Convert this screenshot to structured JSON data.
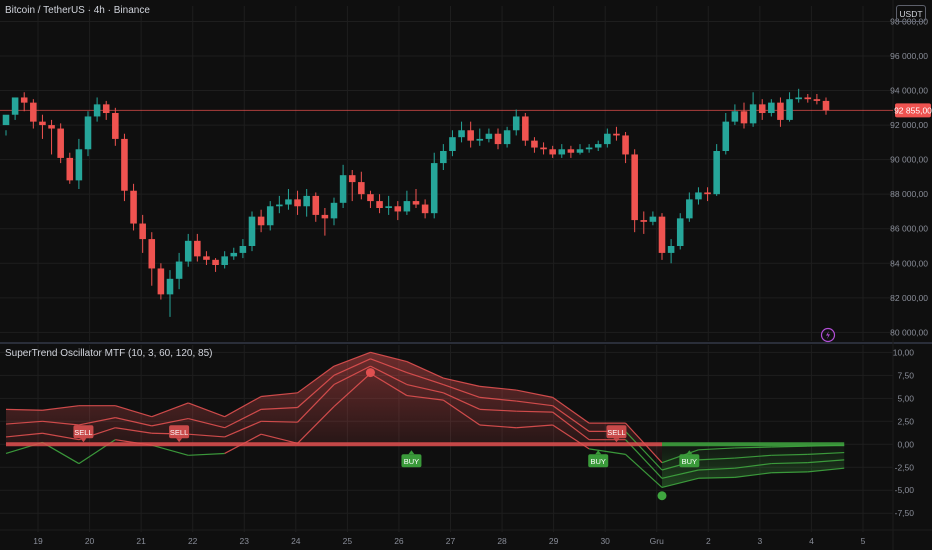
{
  "header": {
    "main_title": "Bitcoin / TetherUS · 4h · Binance",
    "currency_button": "USDT",
    "oscillator_title": "SuperTrend Oscillator MTF (10, 3, 60, 120, 85)"
  },
  "colors": {
    "background": "#0f0f0f",
    "up": "#26a69a",
    "down": "#ef5350",
    "grid": "#1e1e1e",
    "axis_text": "#8a8e99",
    "bull_line": "#3fa63f",
    "bear_line": "#e05050",
    "price_label_bg": "#ef5350",
    "lightning": "#b24fd6"
  },
  "chart_data": [
    {
      "type": "candlestick",
      "yticks": [
        "80 000,00",
        "82 000,00",
        "84 000,00",
        "86 000,00",
        "88 000,00",
        "90 000,00",
        "92 000,00",
        "94 000,00",
        "96 000,00",
        "98 000,00"
      ],
      "ytick_values": [
        80000,
        82000,
        84000,
        86000,
        88000,
        90000,
        92000,
        94000,
        96000,
        98000
      ],
      "xticks": [
        "19",
        "20",
        "21",
        "22",
        "23",
        "24",
        "25",
        "26",
        "27",
        "28",
        "29",
        "30",
        "Gru",
        "2",
        "3",
        "4",
        "5"
      ],
      "ylim": [
        79500,
        98200
      ],
      "current_price": 92855,
      "current_price_label": "92 855,00",
      "series": [
        {
          "name": "BTCUSDT 4h",
          "ohlc": [
            [
              92000,
              92600,
              91700,
              91400
            ],
            [
              92600,
              93600,
              92800,
              92300
            ],
            [
              93600,
              93300,
              93900,
              92800
            ],
            [
              93300,
              92200,
              93500,
              91800
            ],
            [
              92200,
              92000,
              92600,
              91200
            ],
            [
              92000,
              91800,
              92300,
              90300
            ],
            [
              91800,
              90100,
              92100,
              89800
            ],
            [
              90100,
              88800,
              90400,
              88600
            ],
            [
              88800,
              90600,
              91200,
              88300
            ],
            [
              90600,
              92500,
              92800,
              90200
            ],
            [
              92500,
              93200,
              93600,
              92200
            ],
            [
              93200,
              92700,
              93400,
              92300
            ],
            [
              92700,
              91200,
              93000,
              90800
            ],
            [
              91200,
              88200,
              91500,
              87600
            ],
            [
              88200,
              86300,
              88600,
              85900
            ],
            [
              86300,
              85400,
              86800,
              84600
            ],
            [
              85400,
              83700,
              85800,
              82700
            ],
            [
              83700,
              82200,
              84000,
              81900
            ],
            [
              82200,
              83100,
              83600,
              80900
            ],
            [
              83100,
              84100,
              84600,
              82500
            ],
            [
              84100,
              85300,
              85700,
              83800
            ],
            [
              85300,
              84400,
              85700,
              84100
            ],
            [
              84400,
              84200,
              84700,
              83900
            ],
            [
              84200,
              83900,
              84300,
              83500
            ],
            [
              83900,
              84400,
              84700,
              83700
            ],
            [
              84400,
              84600,
              84900,
              84200
            ],
            [
              84600,
              85000,
              85400,
              84300
            ],
            [
              85000,
              86700,
              87000,
              84700
            ],
            [
              86700,
              86200,
              87100,
              85800
            ],
            [
              86200,
              87300,
              87600,
              85900
            ],
            [
              87300,
              87400,
              87900,
              86900
            ],
            [
              87400,
              87700,
              88300,
              87100
            ],
            [
              87700,
              87300,
              88200,
              86800
            ],
            [
              87300,
              87900,
              88300,
              86700
            ],
            [
              87900,
              86800,
              88100,
              86400
            ],
            [
              86800,
              86600,
              87200,
              85600
            ],
            [
              86600,
              87500,
              87800,
              86200
            ],
            [
              87500,
              89100,
              89700,
              87200
            ],
            [
              89100,
              88700,
              89400,
              87600
            ],
            [
              88700,
              88000,
              89300,
              87700
            ],
            [
              88000,
              87600,
              88200,
              87200
            ],
            [
              87600,
              87200,
              88000,
              86900
            ],
            [
              87200,
              87300,
              87900,
              86800
            ],
            [
              87300,
              87000,
              87600,
              86500
            ],
            [
              87000,
              87600,
              88200,
              86800
            ],
            [
              87600,
              87400,
              88300,
              87200
            ],
            [
              87400,
              86900,
              87700,
              86600
            ],
            [
              86900,
              89800,
              90400,
              86600
            ],
            [
              89800,
              90500,
              90900,
              89400
            ],
            [
              90500,
              91300,
              91700,
              90200
            ],
            [
              91300,
              91700,
              92200,
              91000
            ],
            [
              91700,
              91100,
              92200,
              90700
            ],
            [
              91100,
              91200,
              91800,
              90800
            ],
            [
              91200,
              91500,
              91800,
              91000
            ],
            [
              91500,
              90900,
              91800,
              90600
            ],
            [
              90900,
              91700,
              91900,
              90700
            ],
            [
              91700,
              92500,
              92900,
              91400
            ],
            [
              92500,
              91100,
              92700,
              90800
            ],
            [
              91100,
              90700,
              91300,
              90400
            ],
            [
              90700,
              90600,
              91000,
              90300
            ],
            [
              90600,
              90300,
              90800,
              90100
            ],
            [
              90300,
              90600,
              90900,
              90100
            ],
            [
              90600,
              90400,
              90800,
              90100
            ],
            [
              90400,
              90600,
              90900,
              90300
            ],
            [
              90600,
              90700,
              90900,
              90400
            ],
            [
              90700,
              90900,
              91100,
              90500
            ],
            [
              90900,
              91500,
              91800,
              90700
            ],
            [
              91500,
              91400,
              91900,
              91100
            ],
            [
              91400,
              90300,
              91600,
              89800
            ],
            [
              90300,
              86500,
              90600,
              85800
            ],
            [
              86500,
              86400,
              87000,
              85700
            ],
            [
              86400,
              86700,
              87000,
              86200
            ],
            [
              86700,
              84600,
              86900,
              84200
            ],
            [
              84600,
              85000,
              85400,
              84000
            ],
            [
              85000,
              86600,
              86900,
              84800
            ],
            [
              86600,
              87700,
              88100,
              86400
            ],
            [
              87700,
              88100,
              88400,
              87400
            ],
            [
              88100,
              88000,
              88400,
              87600
            ],
            [
              88000,
              90500,
              90900,
              87900
            ],
            [
              90500,
              92200,
              92700,
              90300
            ],
            [
              92200,
              92800,
              93200,
              92000
            ],
            [
              92800,
              92100,
              93300,
              91800
            ],
            [
              92100,
              93200,
              93900,
              91900
            ],
            [
              93200,
              92700,
              93500,
              92300
            ],
            [
              92700,
              93300,
              93500,
              92500
            ],
            [
              93300,
              92300,
              93600,
              91900
            ],
            [
              92300,
              93500,
              93900,
              92200
            ],
            [
              93500,
              93600,
              94100,
              93300
            ],
            [
              93600,
              93500,
              93800,
              93300
            ],
            [
              93500,
              93400,
              93800,
              93200
            ],
            [
              93400,
              92855,
              93600,
              92600
            ]
          ]
        }
      ]
    },
    {
      "type": "line",
      "title": "SuperTrend Oscillator MTF (10, 3, 60, 120, 85)",
      "yticks": [
        "10,00",
        "7,50",
        "5,00",
        "2,50",
        "0,00",
        "-2,50",
        "-5,00",
        "-7,50"
      ],
      "ytick_values": [
        10,
        7.5,
        5,
        2.5,
        0,
        -2.5,
        -5,
        -7.5
      ],
      "ylim": [
        -9,
        10.8
      ],
      "x": [
        0,
        4,
        8,
        12,
        16,
        20,
        24,
        28,
        32,
        36,
        40,
        44,
        48,
        52,
        56,
        60,
        64,
        68,
        72,
        76,
        80,
        84,
        88,
        92
      ],
      "series": [
        {
          "values": [
            -1,
            0.2,
            -2.1,
            0.5,
            -0.1,
            -1.2,
            -1,
            1.1,
            0.1,
            4.1,
            7.7,
            5.3,
            4.8,
            2.1,
            1.8,
            2.1,
            -0.5,
            -1.1,
            -4.7,
            -3.7,
            -3.6,
            -3.1,
            -3,
            -2.6
          ]
        },
        {
          "values": [
            0.8,
            1.2,
            0.5,
            1.8,
            1.2,
            1.1,
            0.8,
            2.5,
            2.4,
            6.5,
            8.5,
            6.5,
            5.6,
            3.8,
            3.6,
            3.5,
            0.5,
            0.5,
            -3.7,
            -2.8,
            -2.6,
            -2.1,
            -2,
            -1.7
          ]
        },
        {
          "values": [
            2.2,
            2.5,
            2.1,
            2.9,
            2,
            2.8,
            1.8,
            3.8,
            4,
            7.5,
            9.3,
            7.8,
            6.5,
            5.1,
            4.7,
            4.2,
            1.4,
            1.4,
            -2.8,
            -1.7,
            -1.5,
            -1.2,
            -1.1,
            -0.9
          ]
        },
        {
          "values": [
            3.8,
            3.7,
            4.2,
            4.2,
            3,
            4.5,
            3,
            5.2,
            5.6,
            8.5,
            10,
            9,
            7.2,
            6.3,
            5.9,
            5.1,
            2.3,
            2.3,
            -2,
            -0.6,
            -0.4,
            -0.3,
            -0.2,
            -0.1
          ]
        }
      ],
      "signals": [
        {
          "x": 8.5,
          "label": "SELL",
          "side": "sell"
        },
        {
          "x": 19,
          "label": "SELL",
          "side": "sell"
        },
        {
          "x": 44.5,
          "label": "BUY",
          "side": "buy"
        },
        {
          "x": 65,
          "label": "BUY",
          "side": "buy"
        },
        {
          "x": 67,
          "label": "SELL",
          "side": "sell"
        },
        {
          "x": 75,
          "label": "BUY",
          "side": "buy"
        }
      ]
    }
  ]
}
